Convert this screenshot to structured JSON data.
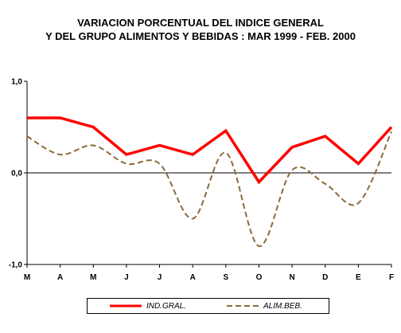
{
  "chart_data": {
    "type": "line",
    "title": "VARIACION PORCENTUAL DEL INDICE GENERAL",
    "subtitle": "Y DEL GRUPO ALIMENTOS Y BEBIDAS : MAR 1999 - FEB. 2000",
    "categories": [
      "M",
      "A",
      "M",
      "J",
      "J",
      "A",
      "S",
      "O",
      "N",
      "D",
      "E",
      "F"
    ],
    "y_tick_labels": [
      "1,0",
      "0,0",
      "-1,0"
    ],
    "y_ticks": [
      1.0,
      0.0,
      -1.0
    ],
    "ylim": [
      -1.0,
      1.0
    ],
    "grid": false,
    "legend_position": "bottom",
    "series": [
      {
        "name": "IND.GRAL.",
        "color": "#ff0000",
        "style": "solid",
        "values": [
          0.6,
          0.6,
          0.5,
          0.2,
          0.3,
          0.2,
          0.46,
          -0.1,
          0.28,
          0.4,
          0.1,
          0.5
        ]
      },
      {
        "name": "ALIM.BEB.",
        "color": "#8b6a3c",
        "style": "dashed",
        "values": [
          0.4,
          0.2,
          0.3,
          0.1,
          0.1,
          -0.5,
          0.22,
          -0.8,
          0.03,
          -0.12,
          -0.33,
          0.45
        ]
      }
    ]
  }
}
